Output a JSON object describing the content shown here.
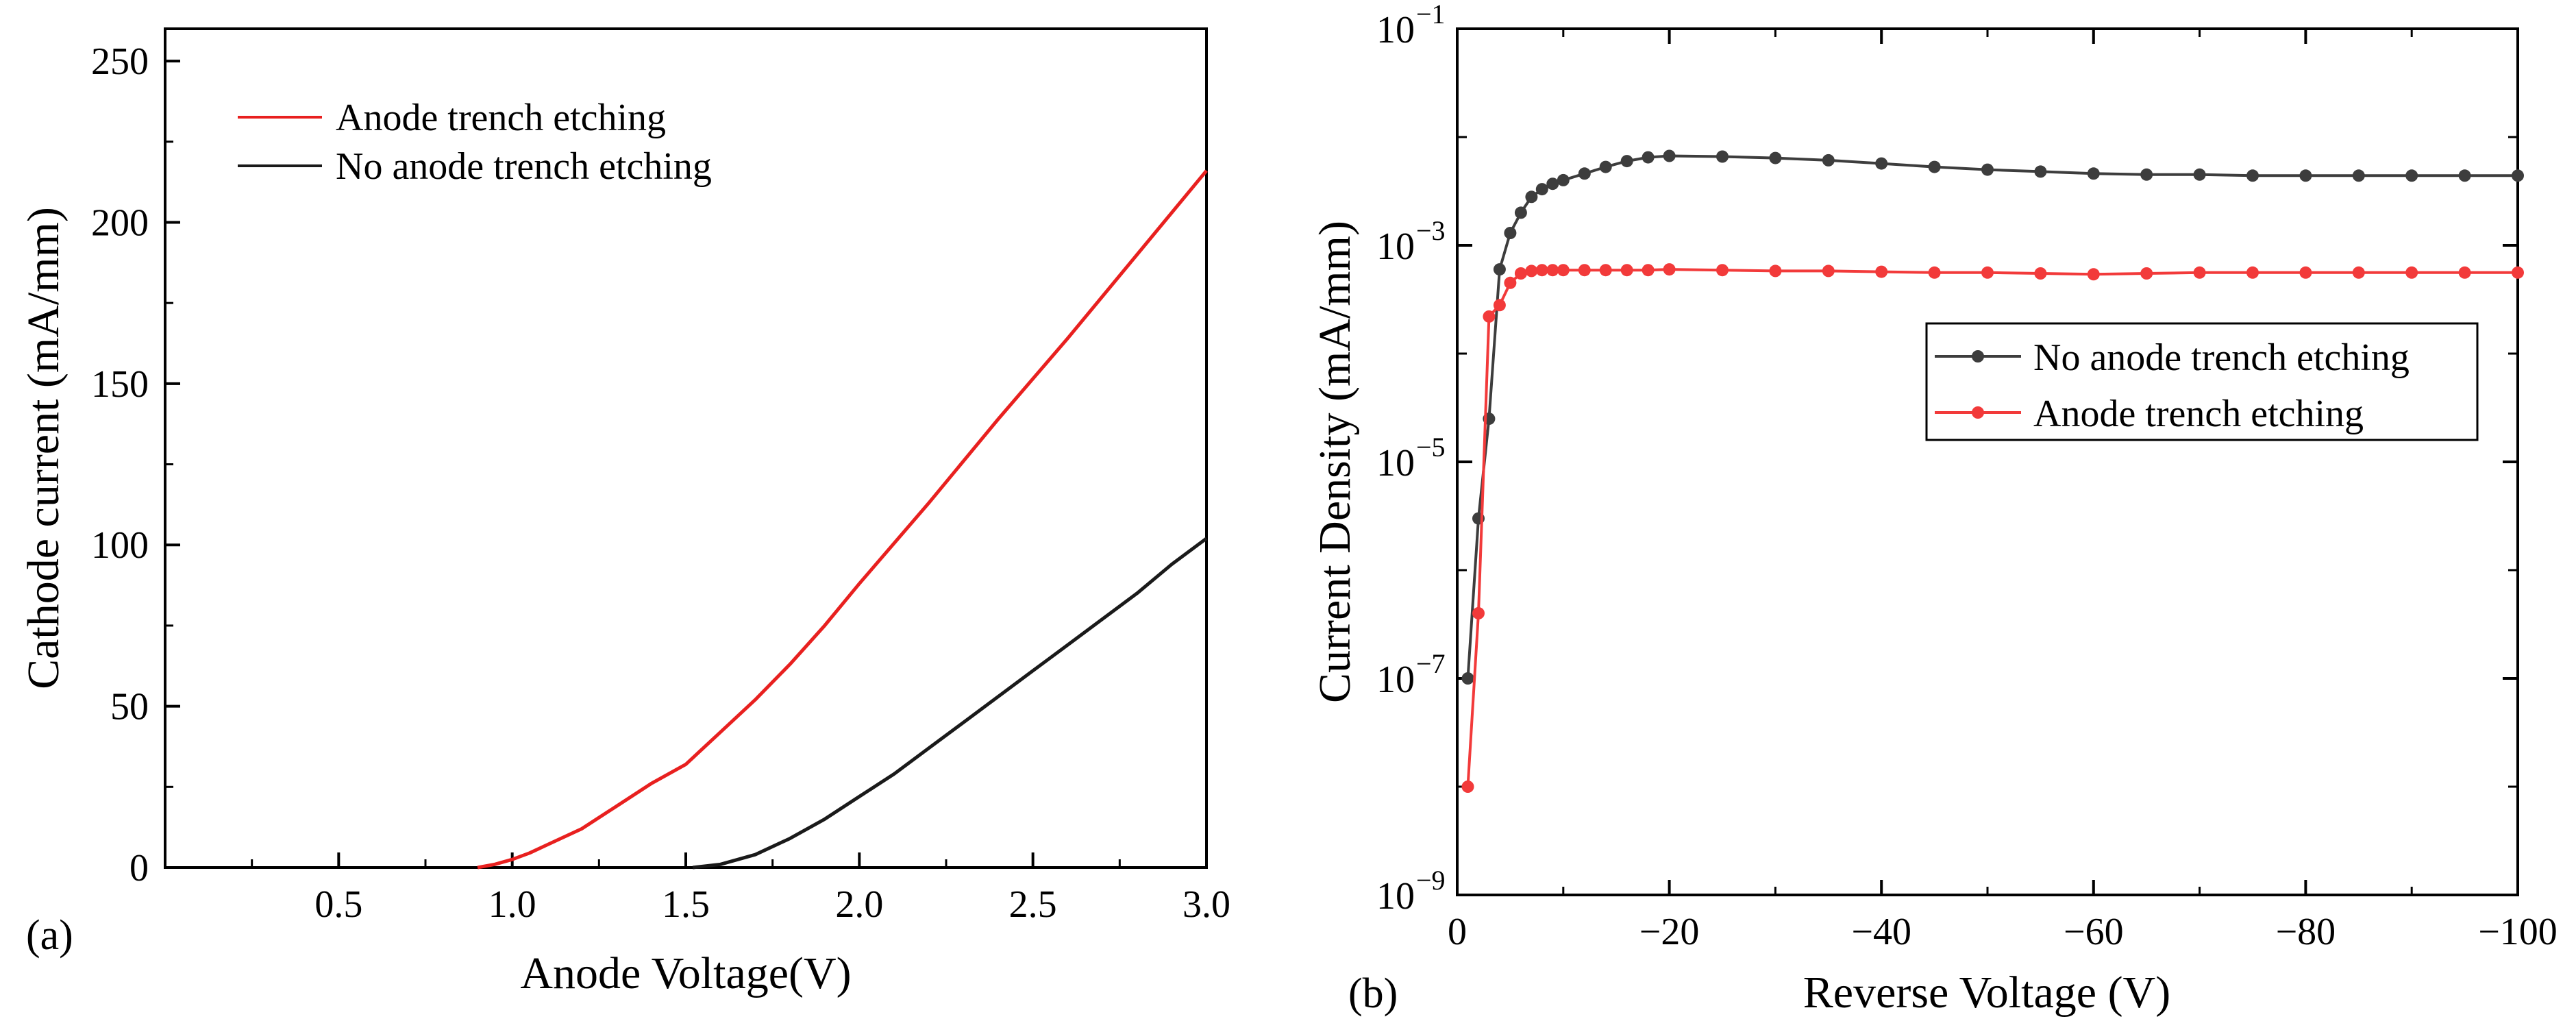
{
  "chart_data": [
    {
      "panel": "(a)",
      "type": "line",
      "xlabel": "Anode Voltage(V)",
      "ylabel": "Cathode current (mA/mm)",
      "xlim": [
        0,
        3.0
      ],
      "ylim": [
        0,
        260
      ],
      "x_ticks": [
        0.5,
        1.0,
        1.5,
        2.0,
        2.5,
        3.0
      ],
      "x_tick_labels": [
        "0.5",
        "1.0",
        "1.5",
        "2.0",
        "2.5",
        "3.0"
      ],
      "y_ticks": [
        0,
        50,
        100,
        150,
        200,
        250
      ],
      "y_tick_labels": [
        "0",
        "50",
        "100",
        "150",
        "200",
        "250"
      ],
      "legend_position": "top-left",
      "series": [
        {
          "name": "Anode trench etching",
          "color": "#e8201f",
          "x": [
            0.9,
            0.95,
            1.0,
            1.05,
            1.1,
            1.2,
            1.3,
            1.4,
            1.5,
            1.6,
            1.7,
            1.8,
            1.9,
            2.0,
            2.2,
            2.4,
            2.6,
            2.8,
            3.0
          ],
          "y": [
            0,
            1,
            2.5,
            4.5,
            7,
            12,
            19,
            26,
            32,
            42,
            52,
            63,
            75,
            88,
            113,
            139,
            164,
            190,
            216
          ]
        },
        {
          "name": "No anode trench etching",
          "color": "#1a1a1a",
          "x": [
            1.52,
            1.6,
            1.7,
            1.8,
            1.9,
            2.0,
            2.1,
            2.2,
            2.3,
            2.4,
            2.5,
            2.6,
            2.7,
            2.8,
            2.9,
            3.0
          ],
          "y": [
            0,
            1,
            4,
            9,
            15,
            22,
            29,
            37,
            45,
            53,
            61,
            69,
            77,
            85,
            94,
            102
          ]
        }
      ]
    },
    {
      "panel": "(b)",
      "type": "line",
      "xlabel": "Reverse Voltage (V)",
      "ylabel": "Current Density (mA/mm)",
      "xlim": [
        0,
        -100
      ],
      "ylim_log10": [
        -9,
        -1
      ],
      "x_ticks": [
        0,
        -20,
        -40,
        -60,
        -80,
        -100
      ],
      "x_tick_labels": [
        "0",
        "−20",
        "−40",
        "−60",
        "−80",
        "−100"
      ],
      "y_ticks_log10": [
        -9,
        -7,
        -5,
        -3,
        -1
      ],
      "y_tick_labels": [
        "10",
        "10",
        "10",
        "10",
        "10"
      ],
      "y_tick_exponents": [
        "−9",
        "−7",
        "−5",
        "−3",
        "−1"
      ],
      "legend_position": "center-right",
      "series": [
        {
          "name": "No anode trench etching",
          "color": "#3d3d3d",
          "marker": "circle",
          "x": [
            -1,
            -2,
            -3,
            -4,
            -5,
            -6,
            -7,
            -8,
            -9,
            -10,
            -12,
            -14,
            -16,
            -18,
            -20,
            -25,
            -30,
            -35,
            -40,
            -45,
            -50,
            -55,
            -60,
            -65,
            -70,
            -75,
            -80,
            -85,
            -90,
            -95,
            -100
          ],
          "y": [
            1e-07,
            3e-06,
            2.5e-05,
            0.0006,
            0.0013,
            0.002,
            0.0028,
            0.0033,
            0.0037,
            0.004,
            0.0046,
            0.0053,
            0.006,
            0.0065,
            0.0067,
            0.0066,
            0.0064,
            0.0061,
            0.0057,
            0.0053,
            0.005,
            0.0048,
            0.0046,
            0.0045,
            0.0045,
            0.0044,
            0.0044,
            0.0044,
            0.0044,
            0.0044,
            0.0044
          ]
        },
        {
          "name": "Anode trench etching",
          "color": "#f23a3a",
          "marker": "circle",
          "x": [
            -1,
            -2,
            -3,
            -4,
            -5,
            -6,
            -7,
            -8,
            -9,
            -10,
            -12,
            -14,
            -16,
            -18,
            -20,
            -25,
            -30,
            -35,
            -40,
            -45,
            -50,
            -55,
            -60,
            -65,
            -70,
            -75,
            -80,
            -85,
            -90,
            -95,
            -100
          ],
          "y": [
            1e-08,
            4e-07,
            0.00022,
            0.00028,
            0.00045,
            0.00055,
            0.00058,
            0.00059,
            0.00059,
            0.00059,
            0.00059,
            0.00059,
            0.00059,
            0.00059,
            0.0006,
            0.00059,
            0.00058,
            0.00058,
            0.00057,
            0.00056,
            0.00056,
            0.00055,
            0.00054,
            0.00055,
            0.00056,
            0.00056,
            0.00056,
            0.00056,
            0.00056,
            0.00056,
            0.00056
          ]
        }
      ]
    }
  ]
}
